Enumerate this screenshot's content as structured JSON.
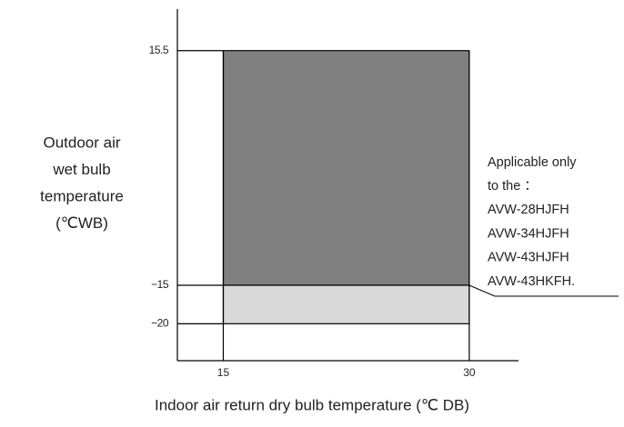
{
  "chart_data": {
    "type": "range",
    "y_label": [
      "Outdoor air",
      "wet bulb",
      "temperature",
      "(℃WB)"
    ],
    "x_label": "Indoor air return dry bulb temperature (℃ DB)",
    "xlim": [
      12.2,
      33
    ],
    "ylim": [
      -24.8,
      20.9
    ],
    "xticks": [
      15,
      30
    ],
    "yticks": [
      15.5,
      {
        "value": -15,
        "label": "−15"
      },
      {
        "value": -20,
        "label": "−20"
      }
    ],
    "regions": [
      {
        "x": [
          15,
          30
        ],
        "y": [
          -15,
          15.5
        ],
        "color": "#808080"
      },
      {
        "x": [
          15,
          30
        ],
        "y": [
          -20,
          -15
        ],
        "color": "#d9d9d9"
      }
    ],
    "annotation": [
      "Applicable only",
      "to the ：",
      "AVW-28HJFH",
      "AVW-34HJFH",
      "AVW-43HJFH",
      "AVW-43HKFH."
    ]
  }
}
